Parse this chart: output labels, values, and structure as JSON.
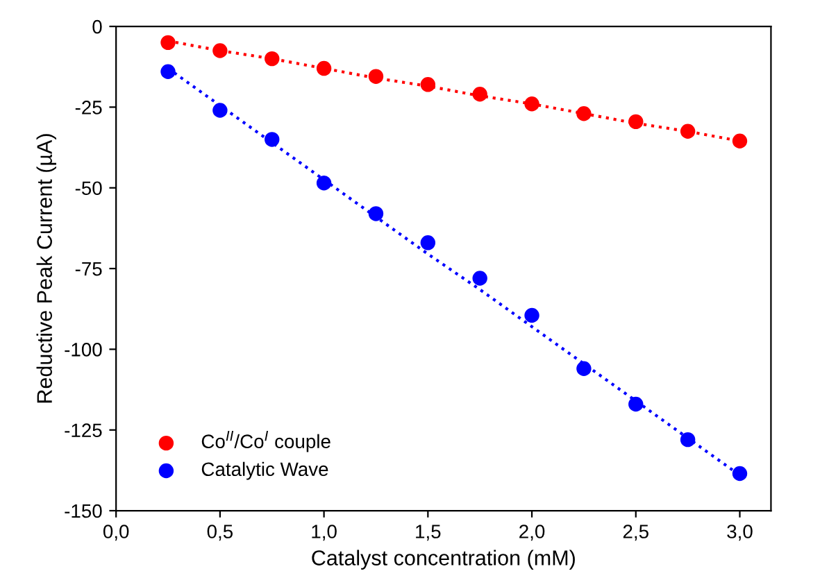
{
  "chart_data": {
    "type": "scatter",
    "xlabel": "Catalyst concentration (mM)",
    "ylabel": "Reductive Peak Current (µA)",
    "x": [
      0.25,
      0.5,
      0.75,
      1.0,
      1.25,
      1.5,
      1.75,
      2.0,
      2.25,
      2.5,
      2.75,
      3.0
    ],
    "series": [
      {
        "name": "Co$^{II}$/Co$^{I}$ couple",
        "color": "#ff0000",
        "values": [
          -5,
          -7.5,
          -10,
          -13,
          -15.5,
          -18,
          -21,
          -24,
          -27,
          -29.5,
          -32.5,
          -35.5
        ],
        "marker": "circle"
      },
      {
        "name": "Catalytic Wave",
        "color": "#0000ff",
        "values": [
          -14,
          -26,
          -35,
          -48.5,
          -58,
          -67,
          -78,
          -89.5,
          -106,
          -117,
          -128,
          -138.5
        ],
        "marker": "circle"
      },
      {
        "type": "line",
        "color": "#ff0000",
        "values": [
          -4.5,
          -7.5,
          -10,
          -13,
          -16,
          -18.5,
          -21.5,
          -24,
          -27,
          -30,
          -32.5,
          -35.5
        ],
        "line_style": "dotted",
        "marker": "none"
      },
      {
        "type": "line",
        "color": "#0000ff",
        "values": [
          -13,
          -24.5,
          -36,
          -47.5,
          -59,
          -70.5,
          -81.5,
          -93,
          -104.5,
          -116,
          -127.5,
          -139
        ],
        "line_style": "dotted",
        "marker": "none"
      }
    ],
    "xlim": [
      0,
      3.15
    ],
    "ylim": [
      -150,
      0
    ],
    "xticks": [
      {
        "value": 0,
        "label": "0,0"
      },
      {
        "value": 0.5,
        "label": "0,5"
      },
      {
        "value": 1.0,
        "label": "1,0"
      },
      {
        "value": 1.5,
        "label": "1,5"
      },
      {
        "value": 2.0,
        "label": "2,0"
      },
      {
        "value": 2.5,
        "label": "2,5"
      },
      {
        "value": 3.0,
        "label": "3,0"
      }
    ],
    "yticks": [
      0,
      -25,
      -50,
      -75,
      -100,
      -125,
      -150
    ],
    "grid": false,
    "legend": "bottom left"
  }
}
